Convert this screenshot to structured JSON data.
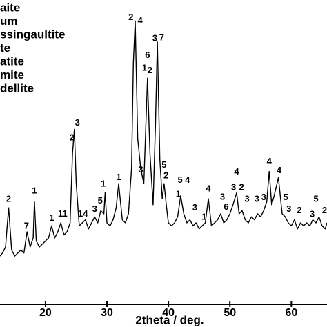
{
  "chart_data": {
    "type": "line",
    "x_label": "2theta / deg.",
    "legend": [
      "aite",
      "um",
      "ssingaultite",
      "te",
      "atite",
      "mite",
      "dellite"
    ],
    "xlim": [
      12.6,
      65.8
    ],
    "xticks": [
      20,
      30,
      40,
      50,
      60
    ],
    "ylim": [
      0,
      100
    ],
    "series": [
      {
        "color": "#000000",
        "x": [
          12.6,
          13.0,
          13.5,
          14.0,
          14.5,
          15.0,
          15.5,
          16.0,
          16.5,
          17.0,
          17.5,
          18.0,
          18.2,
          18.5,
          19.0,
          19.5,
          20.0,
          20.5,
          21.0,
          21.5,
          22.0,
          22.5,
          23.0,
          23.5,
          24.0,
          24.4,
          24.7,
          25.0,
          25.5,
          26.0,
          26.5,
          27.0,
          27.5,
          28.0,
          28.5,
          29.0,
          29.5,
          29.7,
          30.0,
          30.5,
          31.0,
          31.5,
          31.9,
          32.5,
          33.0,
          33.5,
          34.0,
          34.3,
          34.6,
          35.0,
          35.5,
          36.0,
          36.6,
          37.0,
          37.5,
          37.9,
          38.2,
          38.6,
          39.0,
          39.3,
          39.7,
          40.0,
          40.5,
          41.0,
          41.5,
          42.0,
          42.5,
          43.0,
          43.5,
          44.0,
          44.5,
          45.0,
          45.5,
          46.0,
          46.5,
          47.0,
          47.5,
          48.0,
          48.5,
          49.0,
          49.5,
          50.0,
          50.5,
          51.1,
          51.5,
          52.0,
          52.5,
          53.0,
          53.5,
          54.0,
          54.5,
          55.0,
          55.5,
          56.0,
          56.4,
          56.8,
          57.2,
          57.9,
          58.5,
          59.0,
          59.5,
          60.0,
          60.5,
          61.0,
          61.5,
          62.0,
          62.5,
          63.0,
          63.5,
          64.0,
          64.5,
          65.0,
          65.5,
          65.8
        ],
        "values": [
          16,
          17,
          19,
          32,
          18,
          16,
          17,
          18,
          17,
          24,
          19,
          22,
          34,
          21,
          19,
          20,
          21,
          22,
          26,
          22,
          24,
          27,
          23,
          24,
          27,
          50,
          58,
          40,
          26,
          27,
          28,
          25,
          27,
          29,
          27,
          31,
          30,
          37,
          27,
          26,
          28,
          32,
          40,
          28,
          27,
          30,
          45,
          80,
          94,
          55,
          45,
          40,
          75,
          50,
          33,
          60,
          87,
          48,
          35,
          40,
          32,
          27,
          26,
          27,
          29,
          36,
          30,
          27,
          28,
          26,
          27,
          25,
          26,
          27,
          35,
          26,
          27,
          28,
          30,
          27,
          28,
          30,
          33,
          37,
          30,
          31,
          28,
          27,
          29,
          28,
          30,
          29,
          31,
          34,
          44,
          33,
          36,
          42,
          30,
          29,
          27,
          26,
          28,
          25,
          27,
          26,
          27,
          26,
          28,
          27,
          29,
          26,
          25,
          27
        ]
      }
    ],
    "annotations": [
      {
        "x": 14.0,
        "y": 34.8,
        "label": "2"
      },
      {
        "x": 16.9,
        "y": 25.8,
        "label": "7"
      },
      {
        "x": 18.2,
        "y": 37.5,
        "label": "1"
      },
      {
        "x": 21.0,
        "y": 28.5,
        "label": "1"
      },
      {
        "x": 22.8,
        "y": 29.9,
        "label": "11"
      },
      {
        "x": 24.3,
        "y": 55.1,
        "label": "2"
      },
      {
        "x": 25.2,
        "y": 60.0,
        "label": "3"
      },
      {
        "x": 26.1,
        "y": 29.9,
        "label": "14"
      },
      {
        "x": 28.0,
        "y": 31.5,
        "label": "3"
      },
      {
        "x": 28.9,
        "y": 34.2,
        "label": "5"
      },
      {
        "x": 29.4,
        "y": 39.8,
        "label": "1"
      },
      {
        "x": 31.9,
        "y": 42.0,
        "label": "1"
      },
      {
        "x": 33.9,
        "y": 95.1,
        "label": "2"
      },
      {
        "x": 35.4,
        "y": 93.9,
        "label": "4"
      },
      {
        "x": 35.5,
        "y": 44.5,
        "label": "3"
      },
      {
        "x": 36.1,
        "y": 78.2,
        "label": "1"
      },
      {
        "x": 37.0,
        "y": 77.5,
        "label": "2"
      },
      {
        "x": 36.6,
        "y": 82.5,
        "label": "6"
      },
      {
        "x": 37.8,
        "y": 88.1,
        "label": "3"
      },
      {
        "x": 38.9,
        "y": 88.3,
        "label": "7"
      },
      {
        "x": 39.3,
        "y": 46.1,
        "label": "5"
      },
      {
        "x": 39.6,
        "y": 42.5,
        "label": "2"
      },
      {
        "x": 41.6,
        "y": 36.4,
        "label": "1"
      },
      {
        "x": 41.9,
        "y": 41.1,
        "label": "5"
      },
      {
        "x": 43.1,
        "y": 41.1,
        "label": "4"
      },
      {
        "x": 44.3,
        "y": 31.9,
        "label": "3"
      },
      {
        "x": 45.8,
        "y": 28.8,
        "label": "1"
      },
      {
        "x": 46.5,
        "y": 38.2,
        "label": "4"
      },
      {
        "x": 48.8,
        "y": 35.5,
        "label": "3"
      },
      {
        "x": 49.4,
        "y": 32.1,
        "label": "6"
      },
      {
        "x": 50.6,
        "y": 38.7,
        "label": "3"
      },
      {
        "x": 51.1,
        "y": 43.8,
        "label": "4"
      },
      {
        "x": 51.9,
        "y": 38.7,
        "label": "2"
      },
      {
        "x": 52.8,
        "y": 34.8,
        "label": "3"
      },
      {
        "x": 54.4,
        "y": 34.8,
        "label": "3"
      },
      {
        "x": 55.5,
        "y": 35.3,
        "label": "3"
      },
      {
        "x": 56.4,
        "y": 47.2,
        "label": "4"
      },
      {
        "x": 58.0,
        "y": 44.3,
        "label": "4"
      },
      {
        "x": 59.1,
        "y": 35.3,
        "label": "5"
      },
      {
        "x": 59.6,
        "y": 31.5,
        "label": "3"
      },
      {
        "x": 61.3,
        "y": 31.0,
        "label": "2"
      },
      {
        "x": 63.4,
        "y": 29.7,
        "label": "3"
      },
      {
        "x": 64.0,
        "y": 34.8,
        "label": "5"
      },
      {
        "x": 65.4,
        "y": 31.0,
        "label": "2"
      }
    ]
  }
}
